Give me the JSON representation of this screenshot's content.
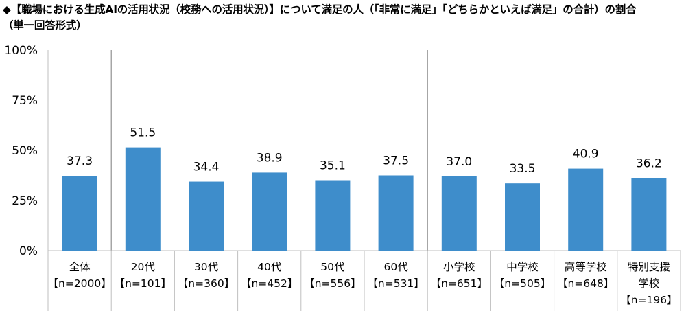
{
  "title": {
    "line1": "◆【職場における生成AIの活用状況（校務への活用状況）】について満足の人（「非常に満足」「どちらかといえば満足」の合計）の割合",
    "line2": "（単一回答形式）"
  },
  "chart_data": {
    "type": "bar",
    "categories": [
      [
        "全体",
        "【n=2000】"
      ],
      [
        "20代",
        "【n=101】"
      ],
      [
        "30代",
        "【n=360】"
      ],
      [
        "40代",
        "【n=452】"
      ],
      [
        "50代",
        "【n=556】"
      ],
      [
        "60代",
        "【n=531】"
      ],
      [
        "小学校",
        "【n=651】"
      ],
      [
        "中学校",
        "【n=505】"
      ],
      [
        "高等学校",
        "【n=648】"
      ],
      [
        "特別支援",
        "学校",
        "【n=196】"
      ]
    ],
    "values": [
      37.3,
      51.5,
      34.4,
      38.9,
      35.1,
      37.5,
      37.0,
      33.5,
      40.9,
      36.2
    ],
    "value_labels": [
      "37.3",
      "51.5",
      "34.4",
      "38.9",
      "35.1",
      "37.5",
      "37.0",
      "33.5",
      "40.9",
      "36.2"
    ],
    "ylim": [
      0,
      100
    ],
    "yticks": [
      0,
      25,
      50,
      75,
      100
    ],
    "ytick_labels": [
      "0%",
      "25%",
      "50%",
      "75%",
      "100%"
    ],
    "group_dividers_after": [
      0,
      5
    ],
    "grid": false,
    "legend": "none",
    "bar_color": "#3e8dcb",
    "axis_color": "#bfbfbf",
    "divider_color": "#8c8c8c"
  }
}
